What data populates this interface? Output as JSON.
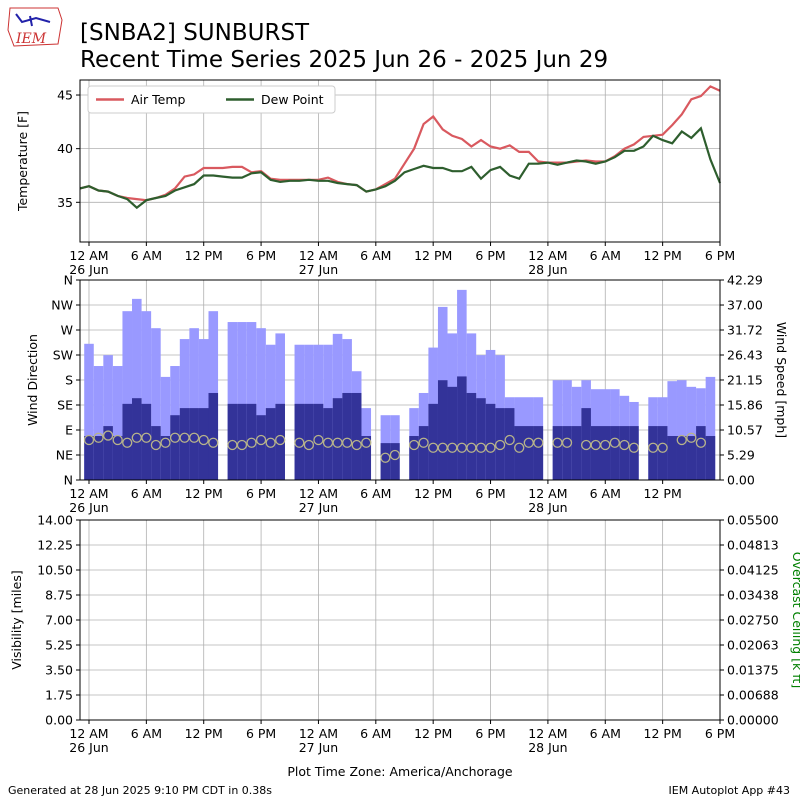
{
  "title": [
    "[SNBA2] SUNBURST",
    "Recent Time Series 2025 Jun 26 - 2025 Jun 29"
  ],
  "logo_text": "IEM",
  "footer_left": "Generated at 28 Jun 2025 9:10 PM CDT in 0.38s",
  "footer_right": "IEM Autoplot App #43",
  "chart_data": [
    {
      "type": "line",
      "ylabel": "Temperature [F]",
      "grid": true,
      "legend": "upper left",
      "xlim": [
        -0.94,
        66
      ],
      "xticks": [
        {
          "value": 0,
          "label": "12 AM"
        },
        {
          "value": 6,
          "label": "6 AM"
        },
        {
          "value": 12,
          "label": "12 PM"
        },
        {
          "value": 18,
          "label": "6 PM"
        },
        {
          "value": 24,
          "label": "12 AM"
        },
        {
          "value": 30,
          "label": "6 AM"
        },
        {
          "value": 36,
          "label": "12 PM"
        },
        {
          "value": 42,
          "label": "6 PM"
        },
        {
          "value": 48,
          "label": "12 AM"
        },
        {
          "value": 54,
          "label": "6 AM"
        },
        {
          "value": 60,
          "label": "12 PM"
        },
        {
          "value": 66,
          "label": "6 PM"
        }
      ],
      "date_labels": [
        {
          "value": 0,
          "label": "26 Jun"
        },
        {
          "value": 24,
          "label": "27 Jun"
        },
        {
          "value": 48,
          "label": "28 Jun"
        }
      ],
      "ylim": [
        31.3,
        46.4
      ],
      "yticks": [
        35,
        40,
        45
      ],
      "x": [
        -0.94,
        0,
        1,
        2,
        3,
        4,
        5,
        6,
        7,
        8,
        9,
        10,
        11,
        12,
        13,
        14,
        15,
        16,
        17,
        18,
        19,
        20,
        21,
        22,
        23,
        24,
        25,
        26,
        27,
        28,
        29,
        30,
        31,
        32,
        33,
        34,
        35,
        36,
        37,
        38,
        39,
        40,
        41,
        42,
        43,
        44,
        45,
        46,
        47,
        48,
        49,
        50,
        51,
        52,
        53,
        54,
        55,
        56,
        57,
        58,
        59,
        60,
        61,
        62,
        63,
        64,
        65,
        66
      ],
      "series": [
        {
          "name": "Air Temp",
          "color": "#d9595f",
          "values": [
            36.3,
            36.5,
            36.1,
            36.0,
            35.6,
            35.4,
            35.3,
            35.2,
            35.4,
            35.7,
            36.3,
            37.4,
            37.6,
            38.2,
            38.2,
            38.2,
            38.3,
            38.3,
            37.8,
            37.9,
            37.2,
            37.1,
            37.1,
            37.1,
            37.1,
            37.1,
            37.3,
            36.9,
            36.7,
            36.6,
            36.0,
            36.2,
            36.7,
            37.2,
            38.6,
            40.0,
            42.3,
            43.0,
            41.8,
            41.2,
            40.9,
            40.2,
            40.8,
            40.2,
            40.0,
            40.3,
            39.7,
            39.7,
            38.8,
            38.7,
            38.7,
            38.7,
            38.8,
            38.9,
            38.8,
            38.8,
            39.3,
            40.0,
            40.4,
            41.1,
            41.2,
            41.3,
            42.2,
            43.2,
            44.6,
            44.9,
            45.8,
            45.4
          ]
        },
        {
          "name": "Dew Point",
          "color": "#2e5e2e",
          "values": [
            36.3,
            36.5,
            36.1,
            36.0,
            35.6,
            35.3,
            34.5,
            35.2,
            35.4,
            35.6,
            36.1,
            36.4,
            36.7,
            37.5,
            37.5,
            37.4,
            37.3,
            37.3,
            37.7,
            37.8,
            37.1,
            36.9,
            37.0,
            37.0,
            37.1,
            37.0,
            37.0,
            36.8,
            36.7,
            36.6,
            36.0,
            36.2,
            36.5,
            37.0,
            37.8,
            38.1,
            38.4,
            38.2,
            38.2,
            37.9,
            37.9,
            38.3,
            37.2,
            38.0,
            38.3,
            37.5,
            37.2,
            38.6,
            38.6,
            38.7,
            38.5,
            38.7,
            38.9,
            38.8,
            38.6,
            38.8,
            39.2,
            39.8,
            39.8,
            40.2,
            41.2,
            40.8,
            40.5,
            41.6,
            41.0,
            41.9,
            39.0,
            36.8
          ]
        }
      ]
    },
    {
      "type": "bar",
      "ylabel": "Wind Direction",
      "y2label": "Wind Speed [mph]",
      "grid": true,
      "xlim": [
        -0.94,
        66
      ],
      "xticks": [
        {
          "value": 0,
          "label": "12 AM"
        },
        {
          "value": 6,
          "label": "6 AM"
        },
        {
          "value": 12,
          "label": "12 PM"
        },
        {
          "value": 18,
          "label": "6 PM"
        },
        {
          "value": 24,
          "label": "12 AM"
        },
        {
          "value": 30,
          "label": "6 AM"
        },
        {
          "value": 36,
          "label": "12 PM"
        },
        {
          "value": 42,
          "label": "6 PM"
        },
        {
          "value": 48,
          "label": "12 AM"
        },
        {
          "value": 54,
          "label": "6 AM"
        },
        {
          "value": 60,
          "label": "12 PM"
        }
      ],
      "date_labels": [
        {
          "value": 0,
          "label": "26 Jun"
        },
        {
          "value": 24,
          "label": "27 Jun"
        },
        {
          "value": 48,
          "label": "28 Jun"
        }
      ],
      "ylim": [
        0,
        360
      ],
      "yticks": [
        {
          "value": 0,
          "label": "N"
        },
        {
          "value": 45,
          "label": "NE"
        },
        {
          "value": 90,
          "label": "E"
        },
        {
          "value": 135,
          "label": "SE"
        },
        {
          "value": 180,
          "label": "S"
        },
        {
          "value": 225,
          "label": "SW"
        },
        {
          "value": 270,
          "label": "W"
        },
        {
          "value": 315,
          "label": "NW"
        },
        {
          "value": 360,
          "label": "N"
        }
      ],
      "y2lim": [
        0,
        42.29
      ],
      "y2ticks": [
        {
          "value": 0,
          "label": "0.00"
        },
        {
          "value": 5.29,
          "label": "5.29"
        },
        {
          "value": 10.57,
          "label": "10.57"
        },
        {
          "value": 15.86,
          "label": "15.86"
        },
        {
          "value": 21.15,
          "label": "21.15"
        },
        {
          "value": 26.43,
          "label": "26.43"
        },
        {
          "value": 31.72,
          "label": "31.72"
        },
        {
          "value": 37,
          "label": "37.00"
        },
        {
          "value": 42.29,
          "label": "42.29"
        }
      ],
      "x": [
        0,
        1,
        2,
        3,
        4,
        5,
        6,
        7,
        8,
        9,
        10,
        11,
        12,
        13,
        14,
        15,
        16,
        17,
        18,
        19,
        20,
        21,
        22,
        23,
        24,
        25,
        26,
        27,
        28,
        29,
        30,
        31,
        32,
        33,
        34,
        35,
        36,
        37,
        38,
        39,
        40,
        41,
        42,
        43,
        44,
        45,
        46,
        47,
        48,
        49,
        50,
        51,
        52,
        53,
        54,
        55,
        56,
        57,
        58,
        59,
        60,
        61,
        62,
        63,
        64,
        65
      ],
      "series": [
        {
          "color": "#9999ff",
          "axis": "y2",
          "values": [
            28.8,
            24.1,
            26.4,
            24.1,
            35.7,
            38.3,
            35.7,
            32.1,
            21.8,
            24.1,
            29.8,
            32.1,
            29.8,
            35.7,
            null,
            33.4,
            33.4,
            33.4,
            32.1,
            28.6,
            31.0,
            null,
            28.6,
            28.6,
            28.6,
            28.6,
            30.9,
            29.8,
            23.0,
            15.2,
            null,
            13.7,
            13.7,
            null,
            15.2,
            18.4,
            28.0,
            36.6,
            31.0,
            40.2,
            31.0,
            26.4,
            27.5,
            26.4,
            17.5,
            17.5,
            17.5,
            17.5,
            null,
            21.1,
            21.1,
            19.7,
            21.1,
            19.2,
            19.2,
            19.2,
            17.8,
            16.5,
            null,
            17.5,
            17.5,
            20.9,
            21.1,
            19.7,
            19.4,
            21.8
          ]
        },
        {
          "color": "#333399",
          "axis": "y2",
          "values": [
            9.3,
            9.3,
            11.4,
            9.3,
            16.1,
            17.3,
            16.1,
            11.4,
            9.3,
            13.7,
            15.2,
            15.2,
            15.2,
            18.4,
            null,
            16.1,
            16.1,
            16.1,
            13.7,
            15.2,
            16.1,
            null,
            16.1,
            16.1,
            16.1,
            15.2,
            17.3,
            18.4,
            18.4,
            9.3,
            null,
            7.8,
            7.8,
            null,
            9.3,
            11.4,
            16.1,
            21.1,
            19.7,
            21.9,
            18.4,
            17.3,
            16.1,
            15.2,
            15.2,
            11.4,
            11.4,
            11.4,
            null,
            11.4,
            11.4,
            11.4,
            15.2,
            11.4,
            11.4,
            11.4,
            11.4,
            11.4,
            null,
            11.4,
            11.4,
            9.3,
            9.3,
            9.3,
            11.4,
            9.3
          ]
        },
        {
          "type": "scatter",
          "color": "#b8b48a",
          "axis": "y",
          "values": [
            72,
            76,
            80,
            72,
            67,
            76,
            76,
            63,
            67,
            76,
            76,
            76,
            72,
            67,
            null,
            63,
            63,
            67,
            72,
            67,
            72,
            null,
            67,
            63,
            72,
            67,
            67,
            67,
            63,
            67,
            null,
            40,
            45,
            null,
            63,
            67,
            58,
            58,
            58,
            58,
            58,
            58,
            58,
            63,
            72,
            58,
            67,
            67,
            null,
            67,
            67,
            null,
            63,
            63,
            63,
            67,
            63,
            58,
            null,
            58,
            58,
            null,
            72,
            76,
            67,
            null
          ]
        }
      ]
    },
    {
      "type": "line",
      "ylabel": "Visibility [miles]",
      "y2label": "Overcast Ceiling [k ft]",
      "y2label_color": "#008000",
      "xlabel": "Plot Time Zone: America/Anchorage",
      "grid": true,
      "xlim": [
        -0.94,
        66
      ],
      "xticks": [
        {
          "value": 0,
          "label": "12 AM"
        },
        {
          "value": 6,
          "label": "6 AM"
        },
        {
          "value": 12,
          "label": "12 PM"
        },
        {
          "value": 18,
          "label": "6 PM"
        },
        {
          "value": 24,
          "label": "12 AM"
        },
        {
          "value": 30,
          "label": "6 AM"
        },
        {
          "value": 36,
          "label": "12 PM"
        },
        {
          "value": 42,
          "label": "6 PM"
        },
        {
          "value": 48,
          "label": "12 AM"
        },
        {
          "value": 54,
          "label": "6 AM"
        },
        {
          "value": 60,
          "label": "12 PM"
        },
        {
          "value": 66,
          "label": "6 PM"
        }
      ],
      "date_labels": [
        {
          "value": 0,
          "label": "26 Jun"
        },
        {
          "value": 24,
          "label": "27 Jun"
        },
        {
          "value": 48,
          "label": "28 Jun"
        }
      ],
      "ylim": [
        0,
        14
      ],
      "yticks": [
        {
          "value": 0,
          "label": "0.00"
        },
        {
          "value": 1.75,
          "label": "1.75"
        },
        {
          "value": 3.5,
          "label": "3.50"
        },
        {
          "value": 5.25,
          "label": "5.25"
        },
        {
          "value": 7,
          "label": "7.00"
        },
        {
          "value": 8.75,
          "label": "8.75"
        },
        {
          "value": 10.5,
          "label": "10.50"
        },
        {
          "value": 12.25,
          "label": "12.25"
        },
        {
          "value": 14,
          "label": "14.00"
        }
      ],
      "y2lim": [
        0,
        0.055
      ],
      "y2ticks": [
        {
          "value": 0,
          "label": "0.00000"
        },
        {
          "value": 0.006875,
          "label": "0.00688"
        },
        {
          "value": 0.01375,
          "label": "0.01375"
        },
        {
          "value": 0.020625,
          "label": "0.02063"
        },
        {
          "value": 0.0275,
          "label": "0.02750"
        },
        {
          "value": 0.034375,
          "label": "0.03438"
        },
        {
          "value": 0.04125,
          "label": "0.04125"
        },
        {
          "value": 0.048125,
          "label": "0.04813"
        },
        {
          "value": 0.055,
          "label": "0.05500"
        }
      ]
    }
  ]
}
